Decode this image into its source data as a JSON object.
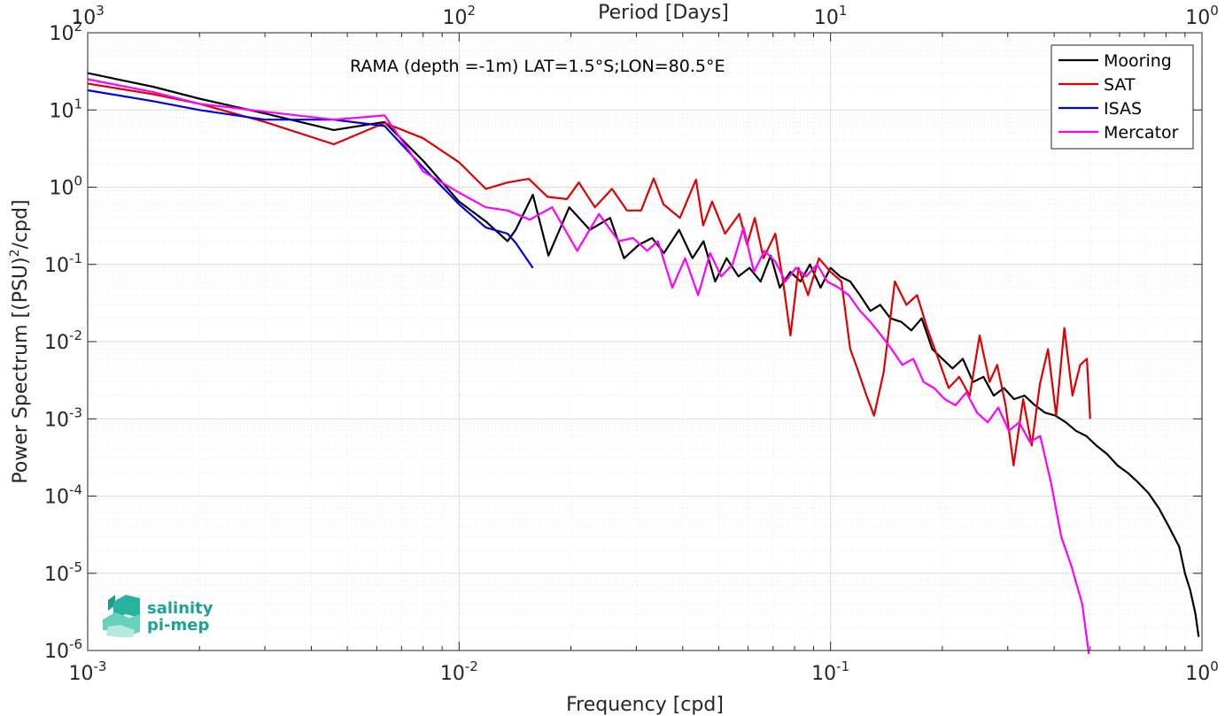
{
  "chart_data": {
    "type": "line",
    "title": "",
    "annotation": "RAMA (depth =-1m) LAT=1.5°S;LON=80.5°E",
    "xlabel": "Frequency [cpd]",
    "ylabel": "Power Spectrum [(PSU)",
    "ylabel_sup": "2",
    "ylabel_tail": "/cpd]",
    "top_xlabel": "Period [Days]",
    "x_scale": "log",
    "y_scale": "log",
    "xlim": [
      0.001,
      1
    ],
    "ylim": [
      1e-06,
      100
    ],
    "grid": true,
    "minor_grid": true,
    "legend_position": "top-right",
    "x_ticks": [
      {
        "value": 0.001,
        "base": "10",
        "exp": "-3"
      },
      {
        "value": 0.01,
        "base": "10",
        "exp": "-2"
      },
      {
        "value": 0.1,
        "base": "10",
        "exp": "-1"
      },
      {
        "value": 1,
        "base": "10",
        "exp": "0"
      }
    ],
    "top_ticks": [
      {
        "value": 0.001,
        "base": "10",
        "exp": "3"
      },
      {
        "value": 0.01,
        "base": "10",
        "exp": "2"
      },
      {
        "value": 0.1,
        "base": "10",
        "exp": "1"
      },
      {
        "value": 1,
        "base": "10",
        "exp": "0"
      }
    ],
    "y_ticks": [
      {
        "value": 1e-06,
        "base": "10",
        "exp": "-6"
      },
      {
        "value": 1e-05,
        "base": "10",
        "exp": "-5"
      },
      {
        "value": 0.0001,
        "base": "10",
        "exp": "-4"
      },
      {
        "value": 0.001,
        "base": "10",
        "exp": "-3"
      },
      {
        "value": 0.01,
        "base": "10",
        "exp": "-2"
      },
      {
        "value": 0.1,
        "base": "10",
        "exp": "-1"
      },
      {
        "value": 1,
        "base": "10",
        "exp": "0"
      },
      {
        "value": 10,
        "base": "10",
        "exp": "1"
      },
      {
        "value": 100,
        "base": "10",
        "exp": "2"
      }
    ],
    "series": [
      {
        "name": "Mooring",
        "color": "#000000",
        "x": [
          0.001,
          0.0015,
          0.002,
          0.003,
          0.0046,
          0.0063,
          0.008,
          0.01,
          0.0118,
          0.0135,
          0.0142,
          0.0158,
          0.0174,
          0.0198,
          0.0225,
          0.0255,
          0.0278,
          0.0305,
          0.0331,
          0.0356,
          0.0391,
          0.0425,
          0.0455,
          0.0489,
          0.0525,
          0.0565,
          0.0605,
          0.0648,
          0.069,
          0.073,
          0.078,
          0.083,
          0.088,
          0.094,
          0.1,
          0.106,
          0.113,
          0.12,
          0.128,
          0.136,
          0.145,
          0.155,
          0.165,
          0.176,
          0.188,
          0.2,
          0.213,
          0.227,
          0.242,
          0.258,
          0.275,
          0.293,
          0.312,
          0.333,
          0.355,
          0.378,
          0.403,
          0.43,
          0.458,
          0.488,
          0.52,
          0.555,
          0.592,
          0.631,
          0.673,
          0.717,
          0.765,
          0.815,
          0.869,
          0.9,
          0.93,
          0.96,
          0.98
        ],
        "y": [
          30,
          20,
          14,
          9,
          5.5,
          7,
          2.2,
          0.65,
          0.36,
          0.2,
          0.28,
          0.8,
          0.13,
          0.55,
          0.28,
          0.4,
          0.12,
          0.18,
          0.22,
          0.14,
          0.28,
          0.12,
          0.2,
          0.06,
          0.12,
          0.07,
          0.09,
          0.06,
          0.13,
          0.05,
          0.08,
          0.06,
          0.1,
          0.05,
          0.09,
          0.07,
          0.06,
          0.04,
          0.025,
          0.03,
          0.02,
          0.018,
          0.014,
          0.02,
          0.008,
          0.006,
          0.0045,
          0.006,
          0.003,
          0.0035,
          0.002,
          0.0025,
          0.0018,
          0.002,
          0.0015,
          0.0012,
          0.0011,
          0.0009,
          0.0007,
          0.0006,
          0.00045,
          0.00035,
          0.00025,
          0.0002,
          0.00015,
          0.00011,
          7e-05,
          4e-05,
          2.2e-05,
          1e-05,
          6e-06,
          3e-06,
          1.5e-06
        ]
      },
      {
        "name": "SAT",
        "color": "#e00000",
        "x": [
          0.001,
          0.0015,
          0.002,
          0.003,
          0.0046,
          0.0063,
          0.008,
          0.01,
          0.0118,
          0.0135,
          0.0154,
          0.0173,
          0.0195,
          0.021,
          0.0232,
          0.0258,
          0.0283,
          0.0309,
          0.0334,
          0.0355,
          0.0393,
          0.0434,
          0.0454,
          0.048,
          0.052,
          0.0568,
          0.0596,
          0.0625,
          0.066,
          0.071,
          0.0745,
          0.078,
          0.082,
          0.087,
          0.093,
          0.1,
          0.107,
          0.113,
          0.118,
          0.125,
          0.131,
          0.139,
          0.149,
          0.16,
          0.171,
          0.182,
          0.195,
          0.208,
          0.222,
          0.237,
          0.252,
          0.268,
          0.281,
          0.296,
          0.311,
          0.33,
          0.348,
          0.366,
          0.385,
          0.405,
          0.426,
          0.448,
          0.47,
          0.49,
          0.5
        ],
        "y": [
          22,
          16,
          12,
          7,
          3.6,
          6.8,
          4.3,
          2.1,
          0.95,
          1.15,
          1.28,
          0.75,
          0.7,
          1.15,
          0.55,
          0.95,
          0.5,
          0.5,
          1.3,
          0.6,
          0.4,
          1.25,
          0.32,
          0.65,
          0.25,
          0.45,
          0.18,
          0.4,
          0.12,
          0.25,
          0.06,
          0.012,
          0.09,
          0.04,
          0.12,
          0.08,
          0.06,
          0.008,
          0.0045,
          0.002,
          0.0011,
          0.004,
          0.06,
          0.03,
          0.04,
          0.015,
          0.006,
          0.0025,
          0.0035,
          0.002,
          0.012,
          0.003,
          0.005,
          0.0015,
          0.00025,
          0.0018,
          0.00045,
          0.0028,
          0.008,
          0.0011,
          0.015,
          0.002,
          0.005,
          0.006,
          0.001
        ]
      },
      {
        "name": "ISAS",
        "color": "#0000e0",
        "x": [
          0.001,
          0.0015,
          0.002,
          0.003,
          0.0046,
          0.0063,
          0.008,
          0.01,
          0.0118,
          0.0135,
          0.0142,
          0.0158
        ],
        "y": [
          18,
          13,
          10,
          7.5,
          7.5,
          6.2,
          1.8,
          0.6,
          0.3,
          0.25,
          0.19,
          0.09
        ]
      },
      {
        "name": "Mercator",
        "color": "#ff00ff",
        "x": [
          0.001,
          0.0015,
          0.002,
          0.003,
          0.0046,
          0.0063,
          0.008,
          0.01,
          0.0118,
          0.0135,
          0.0155,
          0.0178,
          0.0208,
          0.0238,
          0.0269,
          0.0294,
          0.0321,
          0.0343,
          0.0375,
          0.0406,
          0.044,
          0.0474,
          0.0508,
          0.0545,
          0.0583,
          0.0622,
          0.0664,
          0.0709,
          0.0756,
          0.0807,
          0.086,
          0.092,
          0.098,
          0.105,
          0.112,
          0.12,
          0.128,
          0.137,
          0.146,
          0.156,
          0.167,
          0.178,
          0.19,
          0.203,
          0.217,
          0.232,
          0.248,
          0.265,
          0.283,
          0.302,
          0.322,
          0.344,
          0.367,
          0.392,
          0.418,
          0.446,
          0.476,
          0.496
        ],
        "y": [
          25,
          17,
          12,
          9.5,
          7.5,
          8.5,
          1.6,
          0.85,
          0.55,
          0.5,
          0.38,
          0.55,
          0.15,
          0.45,
          0.2,
          0.22,
          0.15,
          0.2,
          0.05,
          0.12,
          0.04,
          0.14,
          0.07,
          0.1,
          0.3,
          0.08,
          0.15,
          0.11,
          0.06,
          0.09,
          0.07,
          0.1,
          0.06,
          0.05,
          0.04,
          0.025,
          0.018,
          0.012,
          0.008,
          0.005,
          0.006,
          0.003,
          0.0025,
          0.0018,
          0.0015,
          0.0022,
          0.0012,
          0.0009,
          0.0014,
          0.0007,
          0.0009,
          0.0005,
          0.0006,
          0.00015,
          3e-05,
          1.2e-05,
          4e-06,
          9e-07
        ]
      }
    ]
  },
  "logo": {
    "line1": "salinity",
    "line2": "pi-mep"
  }
}
